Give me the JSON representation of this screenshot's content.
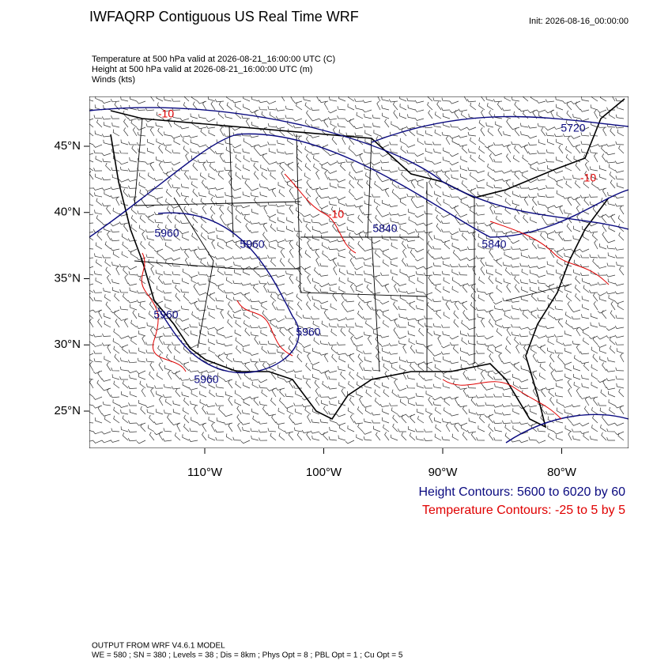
{
  "header": {
    "title": "IWFAQRP Contiguous US Real Time WRF",
    "init": "Init: 2026-08-16_00:00:00",
    "fields": [
      "Temperature at 500 hPa valid at 2026-08-21_16:00:00 UTC   (C)",
      "Height at 500 hPa valid at 2026-08-21_16:00:00 UTC   (m)",
      "Winds   (kts)"
    ]
  },
  "map": {
    "lat_ticks": [
      {
        "value": 45,
        "label": "45°N"
      },
      {
        "value": 40,
        "label": "40°N"
      },
      {
        "value": 35,
        "label": "35°N"
      },
      {
        "value": 30,
        "label": "30°N"
      },
      {
        "value": 25,
        "label": "25°N"
      }
    ],
    "lon_ticks": [
      {
        "value": -110,
        "label": "110°W"
      },
      {
        "value": -100,
        "label": "100°W"
      },
      {
        "value": -90,
        "label": "90°W"
      },
      {
        "value": -80,
        "label": "80°W"
      }
    ],
    "contour_labels": [
      "5720",
      "5840",
      "5840",
      "5960",
      "5960",
      "5960",
      "5960",
      "5960",
      "-10",
      "-10",
      "-10"
    ]
  },
  "legend": {
    "height": "Height Contours: 5600 to 6020 by 60",
    "temperature": "Temperature Contours: -25 to 5 by 5"
  },
  "footer": [
    "OUTPUT FROM WRF V4.6.1 MODEL",
    "WE = 580 ; SN = 380 ; Levels = 38 ; Dis = 8km ; Phys Opt = 8 ; PBL Opt = 1 ; Cu Opt = 5"
  ]
}
